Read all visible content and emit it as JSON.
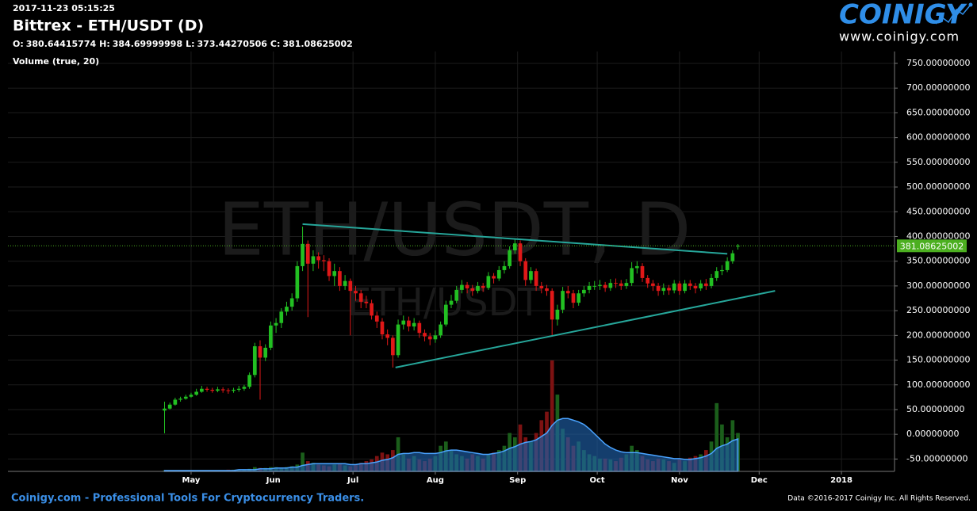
{
  "header": {
    "timestamp": "2017-11-23 05:15:25",
    "title": "Bittrex - ETH/USDT (D)",
    "ohlc_labels": [
      "O:",
      "H:",
      "L:",
      "C:"
    ],
    "indicator": "Volume (true, 20)"
  },
  "logo": {
    "name": "COINIGY",
    "url": "www.coinigy.com"
  },
  "footer": {
    "left": "Coinigy.com - Professional Tools For Cryptocurrency Traders.",
    "right": "Data ©2016-2017 Coinigy Inc. All Rights Reserved."
  },
  "chart_data": {
    "type": "candlestick",
    "watermark": [
      "ETH/USDT, D",
      "ETH/USDT"
    ],
    "up_color": "#22c022",
    "down_color": "#e01818",
    "volume_up_color": "#1b5e1b",
    "volume_down_color": "#7d1212",
    "volume_ma_color": "#1f5fa8",
    "trendline_color": "#26a69a",
    "price_line_color": "#4caf20",
    "grid": true,
    "xlim": [
      51,
      385
    ],
    "xticks": [
      {
        "value": 120,
        "label": "May"
      },
      {
        "value": 151,
        "label": "Jun"
      },
      {
        "value": 181,
        "label": "Jul"
      },
      {
        "value": 212,
        "label": "Aug"
      },
      {
        "value": 243,
        "label": "Sep"
      },
      {
        "value": 273,
        "label": "Oct"
      },
      {
        "value": 304,
        "label": "Nov"
      },
      {
        "value": 334,
        "label": "Dec"
      },
      {
        "value": 365,
        "label": "2018"
      }
    ],
    "ylim": [
      -75,
      774
    ],
    "yticks": [
      {
        "value": -50,
        "label": "-50.00000000"
      },
      {
        "value": 0,
        "label": "0.00000000"
      },
      {
        "value": 50,
        "label": "50.00000000"
      },
      {
        "value": 100,
        "label": "100.00000000"
      },
      {
        "value": 150,
        "label": "150.00000000"
      },
      {
        "value": 200,
        "label": "200.00000000"
      },
      {
        "value": 250,
        "label": "250.00000000"
      },
      {
        "value": 300,
        "label": "300.00000000"
      },
      {
        "value": 350,
        "label": "350.00000000"
      },
      {
        "value": 400,
        "label": "400.00000000"
      },
      {
        "value": 450,
        "label": "450.00000000"
      },
      {
        "value": 500,
        "label": "500.00000000"
      },
      {
        "value": 550,
        "label": "550.00000000"
      },
      {
        "value": 600,
        "label": "600.00000000"
      },
      {
        "value": 650,
        "label": "650.00000000"
      },
      {
        "value": 700,
        "label": "700.00000000"
      },
      {
        "value": 750,
        "label": "750.00000000"
      }
    ],
    "x": [
      110,
      112,
      114,
      116,
      118,
      120,
      122,
      124,
      126,
      128,
      130,
      132,
      134,
      136,
      138,
      140,
      142,
      144,
      146,
      148,
      150,
      152,
      154,
      156,
      158,
      160,
      162,
      164,
      166,
      168,
      170,
      172,
      174,
      176,
      178,
      180,
      182,
      184,
      186,
      188,
      190,
      192,
      194,
      196,
      198,
      200,
      202,
      204,
      206,
      208,
      210,
      212,
      214,
      216,
      218,
      220,
      222,
      224,
      226,
      228,
      230,
      232,
      234,
      236,
      238,
      240,
      242,
      244,
      246,
      248,
      250,
      252,
      254,
      256,
      258,
      260,
      262,
      264,
      266,
      268,
      270,
      272,
      274,
      276,
      278,
      280,
      282,
      284,
      286,
      288,
      290,
      292,
      294,
      296,
      298,
      300,
      302,
      304,
      306,
      308,
      310,
      312,
      314,
      316,
      318,
      320,
      322,
      324,
      326
    ],
    "open": [
      48,
      52,
      60,
      70,
      72,
      76,
      80,
      86,
      92,
      90,
      88,
      91,
      89,
      88,
      90,
      92,
      96,
      120,
      178,
      155,
      175,
      220,
      225,
      248,
      258,
      275,
      340,
      385,
      345,
      360,
      352,
      350,
      320,
      330,
      300,
      310,
      290,
      285,
      268,
      265,
      240,
      228,
      202,
      195,
      160,
      222,
      230,
      218,
      225,
      205,
      198,
      192,
      200,
      222,
      262,
      270,
      292,
      302,
      295,
      290,
      300,
      296,
      320,
      315,
      332,
      340,
      372,
      386,
      350,
      312,
      330,
      300,
      295,
      290,
      232,
      252,
      290,
      285,
      266,
      285,
      292,
      300,
      300,
      302,
      296,
      306,
      305,
      300,
      306,
      336,
      340,
      316,
      305,
      300,
      290,
      296,
      291,
      305,
      290,
      305,
      300,
      295,
      305,
      300,
      316,
      330,
      332,
      350,
      380.64415774
    ],
    "high": [
      66,
      64,
      74,
      76,
      80,
      84,
      92,
      98,
      96,
      94,
      96,
      95,
      93,
      94,
      98,
      100,
      125,
      185,
      190,
      182,
      228,
      235,
      255,
      268,
      285,
      350,
      420,
      392,
      372,
      368,
      362,
      356,
      345,
      338,
      322,
      315,
      300,
      292,
      280,
      272,
      248,
      235,
      212,
      200,
      232,
      240,
      238,
      235,
      230,
      212,
      205,
      210,
      228,
      270,
      282,
      300,
      312,
      308,
      302,
      308,
      306,
      328,
      326,
      340,
      350,
      380,
      395,
      392,
      356,
      338,
      335,
      308,
      302,
      295,
      262,
      298,
      300,
      292,
      292,
      300,
      308,
      310,
      312,
      308,
      314,
      315,
      312,
      314,
      348,
      350,
      346,
      322,
      312,
      306,
      305,
      302,
      312,
      310,
      312,
      312,
      306,
      312,
      314,
      324,
      338,
      342,
      358,
      372,
      384.69999998
    ],
    "low": [
      2,
      50,
      58,
      66,
      70,
      74,
      78,
      84,
      86,
      84,
      85,
      84,
      82,
      84,
      86,
      88,
      92,
      115,
      70,
      148,
      170,
      205,
      215,
      240,
      250,
      268,
      330,
      237,
      330,
      335,
      330,
      310,
      300,
      290,
      292,
      200,
      270,
      255,
      255,
      232,
      215,
      192,
      180,
      135,
      155,
      212,
      208,
      210,
      195,
      188,
      180,
      185,
      195,
      218,
      255,
      265,
      285,
      285,
      280,
      285,
      288,
      292,
      305,
      310,
      325,
      335,
      365,
      340,
      300,
      305,
      290,
      285,
      280,
      200,
      220,
      245,
      275,
      255,
      260,
      278,
      285,
      292,
      292,
      288,
      290,
      296,
      292,
      294,
      300,
      325,
      308,
      296,
      290,
      280,
      282,
      282,
      285,
      282,
      285,
      292,
      285,
      290,
      292,
      295,
      310,
      322,
      328,
      345,
      373.44270506
    ],
    "close": [
      52,
      60,
      70,
      72,
      76,
      80,
      86,
      92,
      90,
      88,
      91,
      89,
      88,
      90,
      92,
      96,
      120,
      178,
      155,
      175,
      220,
      225,
      248,
      258,
      275,
      340,
      385,
      345,
      360,
      352,
      350,
      320,
      330,
      300,
      310,
      290,
      285,
      268,
      265,
      240,
      228,
      202,
      195,
      160,
      222,
      230,
      218,
      225,
      205,
      198,
      192,
      200,
      222,
      262,
      270,
      292,
      302,
      295,
      290,
      300,
      296,
      320,
      315,
      332,
      340,
      372,
      386,
      350,
      312,
      330,
      300,
      295,
      290,
      232,
      252,
      290,
      285,
      266,
      285,
      292,
      300,
      300,
      302,
      296,
      306,
      305,
      300,
      306,
      336,
      340,
      316,
      305,
      300,
      290,
      296,
      291,
      305,
      290,
      305,
      300,
      295,
      305,
      300,
      316,
      330,
      332,
      350,
      366,
      381.08625002
    ],
    "volume": [
      1,
      1,
      1,
      1,
      1,
      1,
      1,
      1,
      1,
      1,
      1,
      1,
      2,
      2,
      2,
      2,
      3,
      5,
      4,
      4,
      5,
      5,
      4,
      5,
      6,
      8,
      22,
      12,
      10,
      8,
      7,
      6,
      8,
      9,
      7,
      6,
      8,
      10,
      12,
      14,
      18,
      22,
      20,
      25,
      40,
      20,
      15,
      18,
      14,
      12,
      15,
      18,
      30,
      35,
      25,
      20,
      18,
      15,
      20,
      18,
      15,
      20,
      22,
      25,
      30,
      45,
      40,
      55,
      40,
      35,
      45,
      60,
      70,
      130,
      90,
      50,
      40,
      30,
      35,
      25,
      20,
      18,
      15,
      15,
      14,
      12,
      16,
      20,
      30,
      25,
      18,
      14,
      12,
      15,
      14,
      12,
      10,
      14,
      12,
      16,
      18,
      20,
      25,
      35,
      80,
      55,
      40,
      60,
      45
    ],
    "volume_ma": [
      1,
      1,
      1,
      1,
      1,
      1,
      1,
      1,
      1,
      1,
      1,
      1,
      1,
      1,
      2,
      2,
      2,
      2,
      3,
      3,
      3,
      4,
      4,
      4,
      5,
      5,
      7,
      8,
      9,
      9,
      9,
      9,
      9,
      9,
      9,
      8,
      8,
      9,
      9,
      10,
      11,
      13,
      14,
      16,
      20,
      21,
      21,
      22,
      22,
      21,
      21,
      21,
      22,
      24,
      25,
      25,
      24,
      23,
      22,
      21,
      20,
      20,
      21,
      22,
      24,
      27,
      29,
      32,
      34,
      35,
      37,
      41,
      45,
      54,
      60,
      62,
      62,
      60,
      58,
      55,
      50,
      44,
      38,
      32,
      28,
      25,
      23,
      22,
      22,
      22,
      21,
      20,
      19,
      18,
      17,
      16,
      15,
      15,
      14,
      14,
      15,
      16,
      18,
      21,
      27,
      30,
      32,
      36,
      38
    ],
    "trendlines": [
      {
        "x": [
          162,
          322
        ],
        "y": [
          425,
          365
        ]
      },
      {
        "x": [
          197,
          340
        ],
        "y": [
          135,
          290
        ]
      }
    ]
  }
}
